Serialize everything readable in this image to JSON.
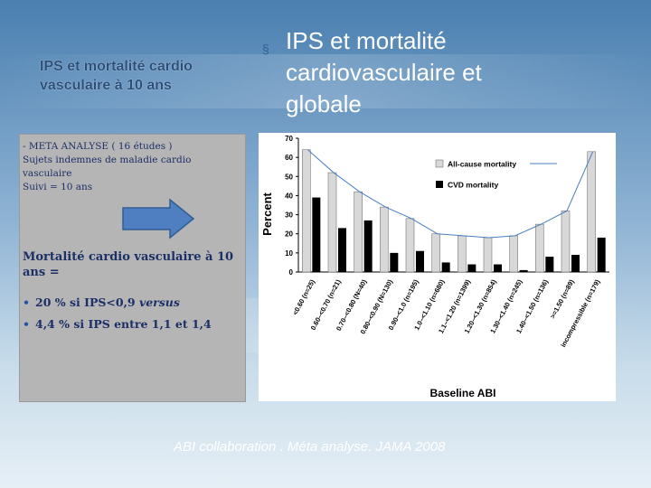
{
  "slide": {
    "left_title": "IPS  et mortalité cardio vasculaire à 10 ans",
    "main_bullet": "§",
    "main_title": "IPS et mortalité cardiovasculaire et globale",
    "panel": {
      "line1": "- META ANALYSE  ( 16 études )",
      "line2": "Sujets indemnes de maladie cardio vasculaire",
      "line3": "Suivi = 10 ans",
      "heading": "Mortalité cardio vasculaire à 10 ans  =",
      "bullet_a_value": "20 %   si IPS<0,9 ",
      "bullet_a_word": "versus",
      "bullet_b": "4,4 % si IPS entre 1,1 et 1,4",
      "bullet_glyph": "•"
    },
    "citation": "ABI collaboration . Méta analyse. JAMA 2008"
  },
  "colors": {
    "arrow": "#4f7fc0",
    "all_cause": "#d8d8d8",
    "cvd": "#000000",
    "trend": "#4a7fc0"
  },
  "chart_data": {
    "type": "bar",
    "ylabel": "Percent",
    "xlabel": "Baseline ABI",
    "ylim": [
      0,
      70
    ],
    "yticks": [
      0,
      10,
      20,
      30,
      40,
      50,
      60,
      70
    ],
    "legend_position": "top-right",
    "categories": [
      "<0.60 (n=25)",
      "0.60–<0.70 (n=21)",
      "0.70–<0.80 (N=40)",
      "0.80–<0.90 (N=130)",
      "0.90–<1.0 (n=195)",
      "1.0–<1.10 (n=680)",
      "1.1–<1.20 (n=1399)",
      "1.20–<1.30 (n=854)",
      "1.30–<1.40 (n=245)",
      "1.40–<1.50 (n=136)",
      ">=1.50 (n=89)",
      "incompressible (n=179)"
    ],
    "series": [
      {
        "name": "All-cause mortality",
        "values": [
          64,
          52,
          42,
          34,
          28,
          20,
          19,
          18,
          19,
          25,
          32,
          63
        ]
      },
      {
        "name": "CVD mortality",
        "values": [
          39,
          23,
          27,
          10,
          11,
          5,
          4,
          4,
          1,
          8,
          9,
          18
        ]
      }
    ]
  }
}
